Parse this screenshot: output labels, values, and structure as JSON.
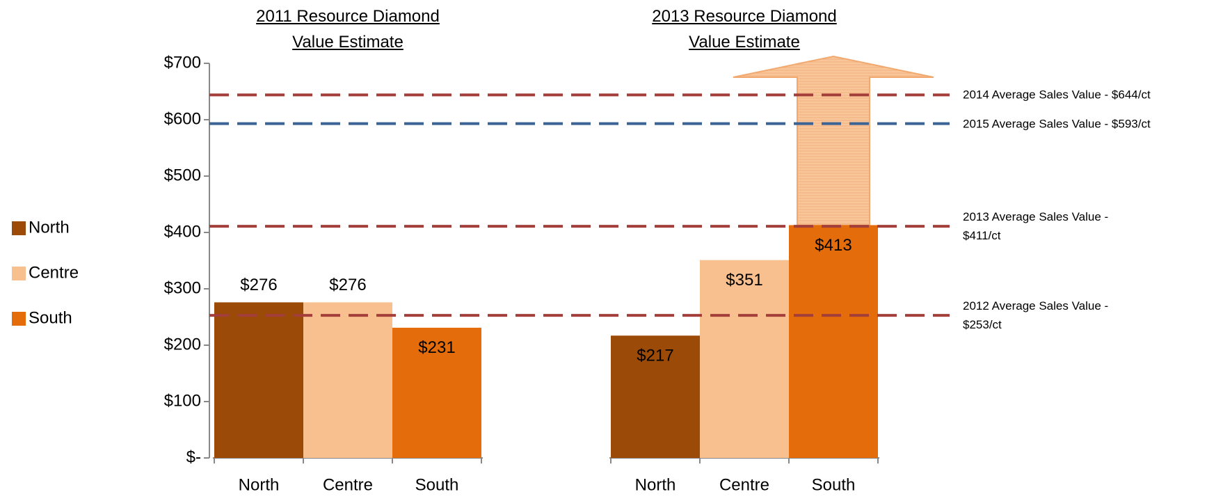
{
  "chart_data": {
    "type": "bar",
    "categories": [
      "2011 Resource Diamond Value Estimate",
      "2013 Resource Diamond Value Estimate"
    ],
    "series": [
      {
        "name": "North",
        "color": "#9c4a08",
        "values": [
          276,
          217
        ],
        "value_labels": [
          "$276",
          "$217"
        ]
      },
      {
        "name": "Centre",
        "color": "#f9c08f",
        "values": [
          276,
          351
        ],
        "value_labels": [
          "$276",
          "$351"
        ]
      },
      {
        "name": "South",
        "color": "#e46c0a",
        "values": [
          231,
          413
        ],
        "value_labels": [
          "$231",
          "$413"
        ]
      }
    ],
    "ylim": [
      0,
      700
    ],
    "yticks": [
      {
        "value": 0,
        "label": "$-"
      },
      {
        "value": 100,
        "label": "$100"
      },
      {
        "value": 200,
        "label": "$200"
      },
      {
        "value": 300,
        "label": "$300"
      },
      {
        "value": 400,
        "label": "$400"
      },
      {
        "value": 500,
        "label": "$500"
      },
      {
        "value": 600,
        "label": "$600"
      },
      {
        "value": 700,
        "label": "$700"
      }
    ],
    "reference_lines": [
      {
        "value": 644,
        "label": "2014 Average Sales Value - $644/ct",
        "color": "#a33e3a"
      },
      {
        "value": 593,
        "label": "2015 Average Sales Value - $593/ct",
        "color": "#3c6396"
      },
      {
        "value": 411,
        "label": "2013 Average Sales Value - $411/ct",
        "color": "#a33e3a"
      },
      {
        "value": 253,
        "label": "2012 Average Sales Value - $253/ct",
        "color": "#a33e3a"
      }
    ],
    "legend": "left"
  }
}
